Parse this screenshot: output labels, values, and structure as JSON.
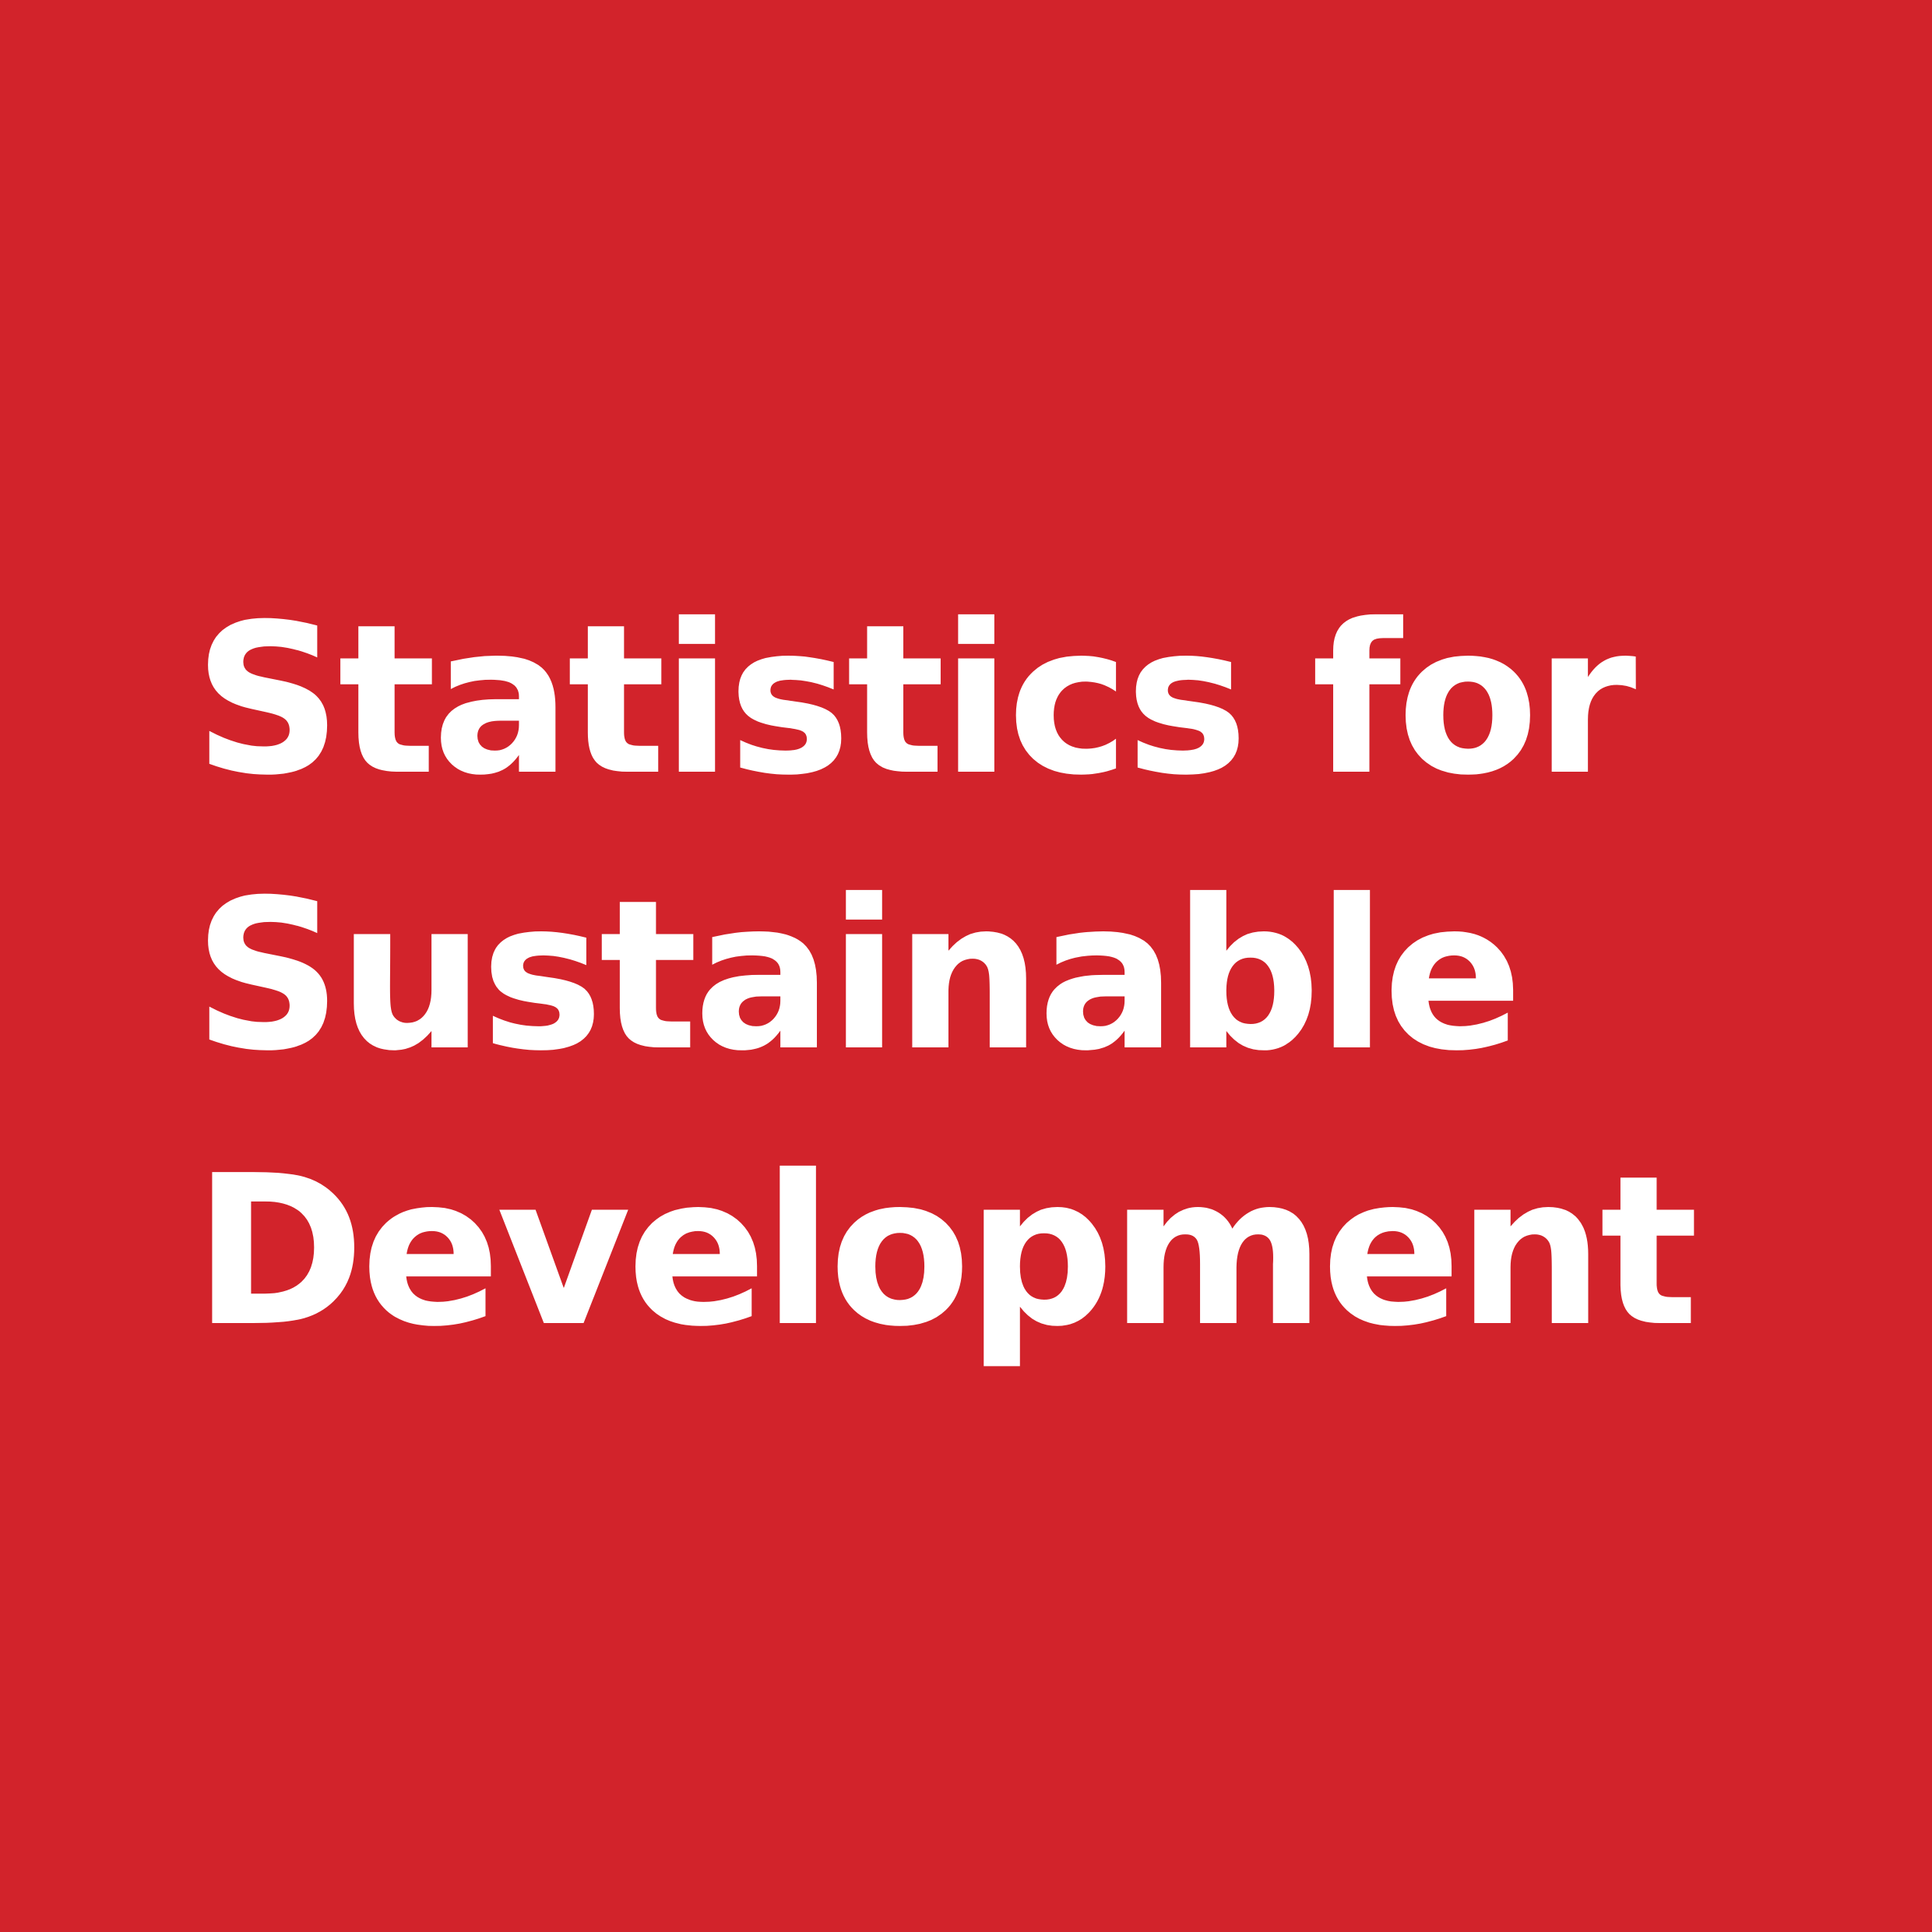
{
  "tile": {
    "background_color": "#d2232b",
    "text_color": "#ffffff",
    "title_lines": [
      "Statistics for",
      "Sustainable",
      "Development"
    ]
  }
}
